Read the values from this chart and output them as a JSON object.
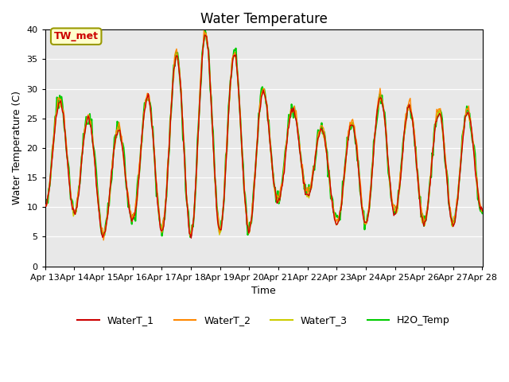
{
  "title": "Water Temperature",
  "ylabel": "Water Temperature (C)",
  "xlabel": "Time",
  "annotation": "TW_met",
  "annotation_color": "#cc0000",
  "annotation_bg": "#ffffcc",
  "annotation_border": "#999900",
  "ylim": [
    0,
    40
  ],
  "background_color": "#e8e8e8",
  "series_colors": {
    "WaterT_1": "#cc0000",
    "WaterT_2": "#ff8800",
    "WaterT_3": "#cccc00",
    "H2O_Temp": "#00cc00"
  },
  "legend_labels": [
    "WaterT_1",
    "WaterT_2",
    "WaterT_3",
    "H2O_Temp"
  ],
  "x_tick_labels": [
    "Apr 13",
    "Apr 14",
    "Apr 15",
    "Apr 16",
    "Apr 17",
    "Apr 18",
    "Apr 19",
    "Apr 20",
    "Apr 21",
    "Apr 22",
    "Apr 23",
    "Apr 24",
    "Apr 25",
    "Apr 26",
    "Apr 27",
    "Apr 28"
  ],
  "x_tick_positions": [
    0,
    1,
    2,
    3,
    4,
    5,
    6,
    7,
    8,
    9,
    10,
    11,
    12,
    13,
    14,
    15
  ],
  "yticks": [
    0,
    5,
    10,
    15,
    20,
    25,
    30,
    35,
    40
  ],
  "n_points": 480,
  "seed": 42,
  "envelope_high": [
    27,
    29,
    21,
    25,
    32,
    39,
    39,
    32,
    27,
    26,
    20,
    28,
    29,
    25,
    27,
    25
  ],
  "envelope_low": [
    10,
    9,
    5,
    8,
    6,
    5,
    6,
    6,
    11,
    12,
    7,
    7,
    9,
    7,
    7,
    9
  ]
}
